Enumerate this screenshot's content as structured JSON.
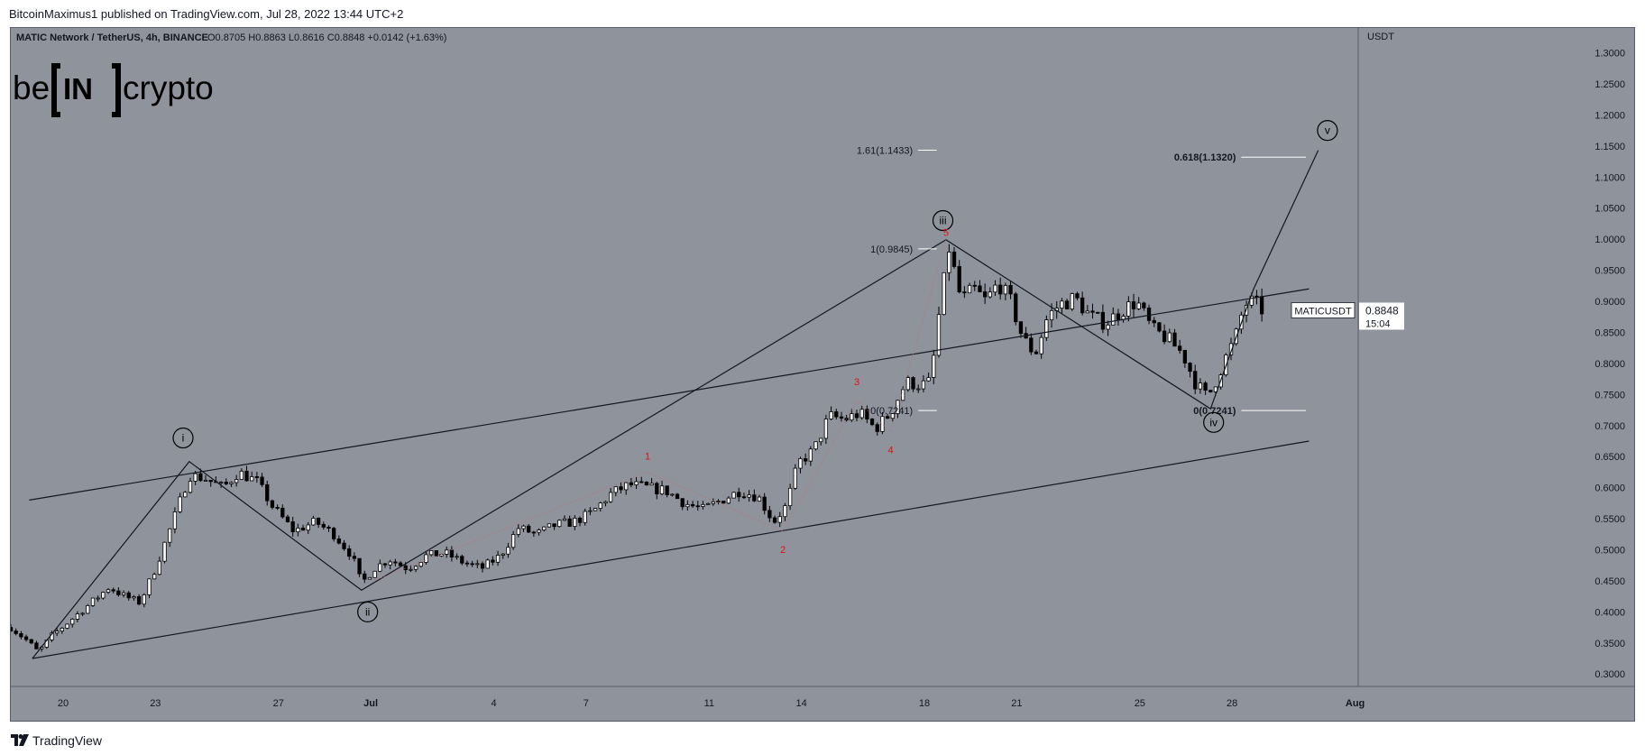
{
  "publisher_line": "BitcoinMaximus1 published on TradingView.com, Jul 28, 2022 13:44 UTC+2",
  "footer": {
    "brand": "TradingView",
    "logo_icon": "tradingview-logo-icon"
  },
  "watermark": {
    "before": "be",
    "middle": "IN",
    "after": "crypto"
  },
  "header": {
    "symbol": "MATIC Network / TetherUS, 4h, BINANCE",
    "ohlc": [
      {
        "k": "O",
        "v": "0.8705"
      },
      {
        "k": "H",
        "v": "0.8863"
      },
      {
        "k": "L",
        "v": "0.8616"
      },
      {
        "k": "C",
        "v": "0.8848"
      }
    ],
    "change": "+0.0142 (+1.63%)"
  },
  "colors": {
    "background": "#8f939c",
    "axis_panel": "#8f939c",
    "candle_up": "#ffffff",
    "candle_down": "#000000",
    "line": "#131722",
    "label_red": "#e01010",
    "grid": "#9a9ea7"
  },
  "chart_data": {
    "type": "candlestick",
    "symbol": "MATICUSDT",
    "currency": "USDT",
    "ylim": [
      0.28,
      1.34
    ],
    "yticks": [
      "0.3000",
      "0.3500",
      "0.4000",
      "0.4500",
      "0.5000",
      "0.5500",
      "0.6000",
      "0.6500",
      "0.7000",
      "0.7500",
      "0.8000",
      "0.8500",
      "0.9000",
      "0.9500",
      "1.0000",
      "1.0500",
      "1.1000",
      "1.1500",
      "1.2000",
      "1.2500",
      "1.3000"
    ],
    "xticks": [
      {
        "label": "20",
        "day": 20
      },
      {
        "label": "23",
        "day": 23
      },
      {
        "label": "27",
        "day": 27
      },
      {
        "label": "Jul",
        "day": 30
      },
      {
        "label": "4",
        "day": 34
      },
      {
        "label": "7",
        "day": 37
      },
      {
        "label": "11",
        "day": 41
      },
      {
        "label": "14",
        "day": 44
      },
      {
        "label": "18",
        "day": 48
      },
      {
        "label": "21",
        "day": 51
      },
      {
        "label": "25",
        "day": 55
      },
      {
        "label": "28",
        "day": 58
      },
      {
        "label": "Aug",
        "day": 62
      }
    ],
    "x_range_days": [
      18.3,
      62.1
    ],
    "price_path": [
      [
        18.3,
        0.375
      ],
      [
        18.8,
        0.355
      ],
      [
        19.2,
        0.335
      ],
      [
        19.6,
        0.36
      ],
      [
        20.2,
        0.385
      ],
      [
        20.8,
        0.41
      ],
      [
        21.5,
        0.44
      ],
      [
        22.0,
        0.425
      ],
      [
        22.5,
        0.415
      ],
      [
        23.0,
        0.47
      ],
      [
        23.6,
        0.55
      ],
      [
        24.1,
        0.62
      ],
      [
        24.6,
        0.615
      ],
      [
        25.2,
        0.6
      ],
      [
        25.7,
        0.625
      ],
      [
        26.3,
        0.61
      ],
      [
        26.8,
        0.57
      ],
      [
        27.5,
        0.53
      ],
      [
        28.2,
        0.545
      ],
      [
        28.8,
        0.525
      ],
      [
        29.4,
        0.49
      ],
      [
        29.7,
        0.445
      ],
      [
        30.1,
        0.47
      ],
      [
        30.6,
        0.485
      ],
      [
        31.2,
        0.47
      ],
      [
        31.8,
        0.49
      ],
      [
        32.4,
        0.495
      ],
      [
        33.0,
        0.48
      ],
      [
        33.6,
        0.47
      ],
      [
        34.2,
        0.49
      ],
      [
        34.8,
        0.535
      ],
      [
        35.4,
        0.525
      ],
      [
        36.0,
        0.54
      ],
      [
        36.6,
        0.545
      ],
      [
        37.2,
        0.56
      ],
      [
        37.8,
        0.59
      ],
      [
        38.4,
        0.605
      ],
      [
        39.0,
        0.6
      ],
      [
        39.6,
        0.595
      ],
      [
        40.2,
        0.575
      ],
      [
        40.8,
        0.565
      ],
      [
        41.4,
        0.58
      ],
      [
        42.0,
        0.595
      ],
      [
        42.6,
        0.585
      ],
      [
        43.1,
        0.545
      ],
      [
        43.5,
        0.57
      ],
      [
        43.9,
        0.64
      ],
      [
        44.4,
        0.66
      ],
      [
        44.9,
        0.715
      ],
      [
        45.4,
        0.71
      ],
      [
        45.9,
        0.72
      ],
      [
        46.4,
        0.695
      ],
      [
        46.9,
        0.72
      ],
      [
        47.4,
        0.77
      ],
      [
        47.9,
        0.765
      ],
      [
        48.2,
        0.77
      ],
      [
        48.5,
        0.89
      ],
      [
        48.8,
        0.985
      ],
      [
        49.2,
        0.9
      ],
      [
        49.6,
        0.92
      ],
      [
        50.0,
        0.9
      ],
      [
        50.4,
        0.93
      ],
      [
        50.8,
        0.9
      ],
      [
        51.2,
        0.84
      ],
      [
        51.6,
        0.815
      ],
      [
        52.0,
        0.875
      ],
      [
        52.4,
        0.895
      ],
      [
        52.9,
        0.905
      ],
      [
        53.4,
        0.875
      ],
      [
        53.9,
        0.865
      ],
      [
        54.4,
        0.885
      ],
      [
        54.9,
        0.9
      ],
      [
        55.4,
        0.855
      ],
      [
        55.9,
        0.84
      ],
      [
        56.4,
        0.815
      ],
      [
        56.8,
        0.77
      ],
      [
        57.2,
        0.745
      ],
      [
        57.5,
        0.775
      ],
      [
        57.8,
        0.81
      ],
      [
        58.1,
        0.84
      ],
      [
        58.4,
        0.895
      ],
      [
        58.7,
        0.9
      ],
      [
        59.0,
        0.885
      ]
    ],
    "last_price": "0.8848",
    "last_label": "MATICUSDT",
    "countdown": "15:04",
    "channel_lines": [
      {
        "from": [
          18.9,
          0.58
        ],
        "to": [
          60.5,
          0.92
        ]
      },
      {
        "from": [
          19.0,
          0.325
        ],
        "to": [
          60.5,
          0.675
        ]
      }
    ],
    "wave_path": [
      [
        19.0,
        0.325
      ],
      [
        24.1,
        0.642
      ],
      [
        29.7,
        0.435
      ],
      [
        48.7,
        0.999
      ],
      [
        57.3,
        0.727
      ],
      [
        58.7,
        0.92
      ],
      [
        60.8,
        1.143
      ]
    ],
    "minor_wave_path": [
      [
        30.1,
        0.45
      ],
      [
        39.0,
        0.625
      ],
      [
        43.4,
        0.53
      ],
      [
        45.8,
        0.74
      ],
      [
        46.9,
        0.69
      ],
      [
        48.7,
        0.999
      ]
    ],
    "wave_labels": [
      {
        "text": "i",
        "x": 23.9,
        "y": 0.68
      },
      {
        "text": "ii",
        "x": 29.9,
        "y": 0.4
      },
      {
        "text": "iii",
        "x": 48.6,
        "y": 1.03
      },
      {
        "text": "iv",
        "x": 57.4,
        "y": 0.705
      },
      {
        "text": "v",
        "x": 61.1,
        "y": 1.175
      }
    ],
    "minor_labels": [
      {
        "text": "1",
        "x": 39.0,
        "y": 0.645
      },
      {
        "text": "2",
        "x": 43.4,
        "y": 0.495
      },
      {
        "text": "3",
        "x": 45.8,
        "y": 0.765
      },
      {
        "text": "4",
        "x": 46.9,
        "y": 0.655
      },
      {
        "text": "5",
        "x": 48.7,
        "y": 1.005
      }
    ],
    "fib_levels": [
      {
        "label": "1.61(1.1433)",
        "value": 1.1433,
        "x_line": [
          47.8,
          48.4
        ]
      },
      {
        "label": "1(0.9845)",
        "value": 0.9845,
        "x_line": [
          47.8,
          48.4
        ]
      },
      {
        "label": "0(0.7241)",
        "value": 0.7241,
        "x_line": [
          47.8,
          48.4
        ]
      },
      {
        "label": "0.618(1.1320)",
        "value": 1.132,
        "x_line": [
          58.3,
          60.4
        ]
      },
      {
        "label": "0(0.7241)",
        "value": 0.7241,
        "x_line": [
          58.3,
          60.4
        ]
      }
    ]
  }
}
